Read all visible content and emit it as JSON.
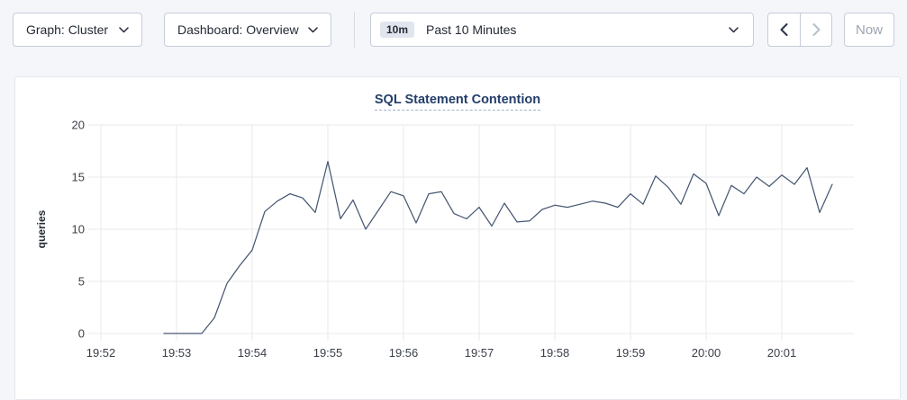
{
  "toolbar": {
    "graph_dropdown": "Graph: Cluster",
    "dashboard_dropdown": "Dashboard: Overview",
    "time_badge": "10m",
    "time_range_label": "Past 10 Minutes",
    "now_label": "Now"
  },
  "icons": {
    "chevron_down": "⌄",
    "chevron_left": "‹",
    "chevron_right": "›"
  },
  "colors": {
    "page_background": "#f4f6fa",
    "card_background": "#ffffff",
    "button_border": "#c6ccd9",
    "text": "#242a35",
    "disabled_text": "#9ca4b2",
    "title_blue": "#243e6b",
    "grid": "#e9eaee",
    "line": "#475872"
  },
  "chart_data": {
    "type": "line",
    "title": "SQL Statement Contention",
    "ylabel": "queries",
    "ylim": [
      0,
      20
    ],
    "yticks": [
      0,
      5,
      10,
      15,
      20
    ],
    "x_tick_labels": [
      "19:52",
      "19:53",
      "19:54",
      "19:55",
      "19:56",
      "19:57",
      "19:58",
      "19:59",
      "20:00",
      "20:01"
    ],
    "x_start_seconds": 50,
    "x_step_seconds": 10,
    "grid": true,
    "legend_position": "none",
    "line_color": "#475872",
    "series": [
      {
        "name": "SQL Statement Contention",
        "values": [
          0,
          0,
          0,
          0,
          1.5,
          4.8,
          6.5,
          8.0,
          11.7,
          12.7,
          13.4,
          13.0,
          11.6,
          16.5,
          11.0,
          12.8,
          10.0,
          11.8,
          13.6,
          13.2,
          10.6,
          13.4,
          13.6,
          11.5,
          11.0,
          12.1,
          10.3,
          12.5,
          10.7,
          10.8,
          11.9,
          12.3,
          12.1,
          12.4,
          12.7,
          12.5,
          12.1,
          13.4,
          12.4,
          15.1,
          14.0,
          12.4,
          15.3,
          14.4,
          11.3,
          14.2,
          13.4,
          15.0,
          14.1,
          15.2,
          14.3,
          15.9,
          11.6,
          14.3
        ]
      }
    ]
  }
}
